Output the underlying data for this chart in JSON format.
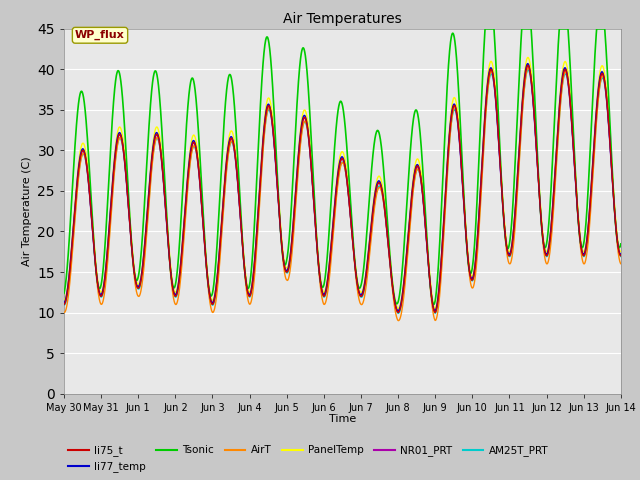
{
  "title": "Air Temperatures",
  "xlabel": "Time",
  "ylabel": "Air Temperature (C)",
  "ylim": [
    0,
    45
  ],
  "yticks": [
    0,
    5,
    10,
    15,
    20,
    25,
    30,
    35,
    40,
    45
  ],
  "n_points": 3000,
  "series": {
    "li75_t": {
      "color": "#cc0000",
      "lw": 1.0
    },
    "li77_temp": {
      "color": "#0000cc",
      "lw": 1.0
    },
    "Tsonic": {
      "color": "#00cc00",
      "lw": 1.2
    },
    "AirT": {
      "color": "#ff8800",
      "lw": 1.0
    },
    "PanelTemp": {
      "color": "#ffff00",
      "lw": 1.0
    },
    "NR01_PRT": {
      "color": "#aa00aa",
      "lw": 1.0
    },
    "AM25T_PRT": {
      "color": "#00cccc",
      "lw": 1.0
    }
  },
  "x_tick_labels": [
    "May 30",
    "May 31",
    "Jun 1",
    "Jun 2",
    "Jun 3",
    "Jun 4",
    "Jun 5",
    "Jun 6",
    "Jun 7",
    "Jun 8",
    "Jun 9",
    "Jun 10",
    "Jun 11",
    "Jun 12",
    "Jun 13",
    "Jun 14"
  ],
  "x_tick_positions": [
    0,
    1,
    2,
    3,
    4,
    5,
    6,
    7,
    8,
    9,
    10,
    11,
    12,
    13,
    14,
    15
  ],
  "annotation_text": "WP_flux",
  "plot_bg_color": "#e8e8e8",
  "grid_color": "#ffffff",
  "fig_bg_color": "#c8c8c8",
  "day_amplitudes": [
    17,
    20,
    19,
    20,
    19,
    21,
    23,
    18,
    16,
    14,
    22,
    25,
    24,
    23,
    23,
    22
  ],
  "day_mintemps": [
    11,
    12,
    13,
    12,
    11,
    12,
    15,
    12,
    12,
    10,
    10,
    14,
    17,
    17,
    17,
    17
  ]
}
